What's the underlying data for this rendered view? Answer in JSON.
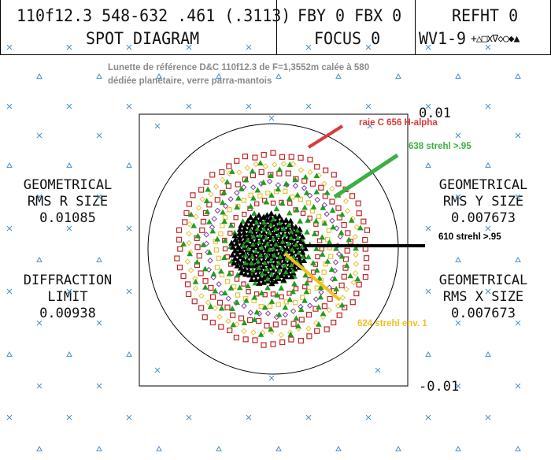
{
  "header": {
    "lens_line1": "110f12.3 548-632 .461 (.3113)",
    "lens_line2": "SPOT DIAGRAM",
    "field_line1": "FBY 0 FBX 0",
    "field_line2": "FOCUS 0",
    "ref_line1": "REFHT 0",
    "ref_line2": "WV1-9",
    "ref_symbols": "+△□x∇◇○◆▲"
  },
  "caption": {
    "line1": "Lunette de référence D&C 110f12.3 de F=1,3552m calée à 580",
    "line2": "dédiée planétaire, verre parra-mantois"
  },
  "left_panel": {
    "rms_r_line1": "GEOMETRICAL",
    "rms_r_line2": "RMS R SIZE",
    "rms_r_value": "0.01085",
    "diff_line1": "DIFFRACTION",
    "diff_line2": "LIMIT",
    "diff_value": "0.00938"
  },
  "right_panel": {
    "rms_y_line1": "GEOMETRICAL",
    "rms_y_line2": "RMS Y SIZE",
    "rms_y_value": "0.007673",
    "rms_x_line1": "GEOMETRICAL",
    "rms_x_line2": "RMS X SIZE",
    "rms_x_value": "0.007673"
  },
  "scale": {
    "top": "0.01",
    "bottom": "-0.01"
  },
  "annotations": [
    {
      "text": "raie C 656 H-alpha",
      "color": "#d93a3a"
    },
    {
      "text": "638 strehl >.95",
      "color": "#3cb043"
    },
    {
      "text": "610 strehl >.95",
      "color": "#000000"
    },
    {
      "text": "624 strehl env. 1",
      "color": "#f0c020"
    }
  ],
  "colors": {
    "grid_blue": "#4a90c8",
    "ring_red": "#c0282a",
    "ring_yellow": "#e8c23a",
    "ring_purple": "#8a3aa8",
    "green_marker": "#1e9e1e",
    "core_black": "#000000"
  }
}
